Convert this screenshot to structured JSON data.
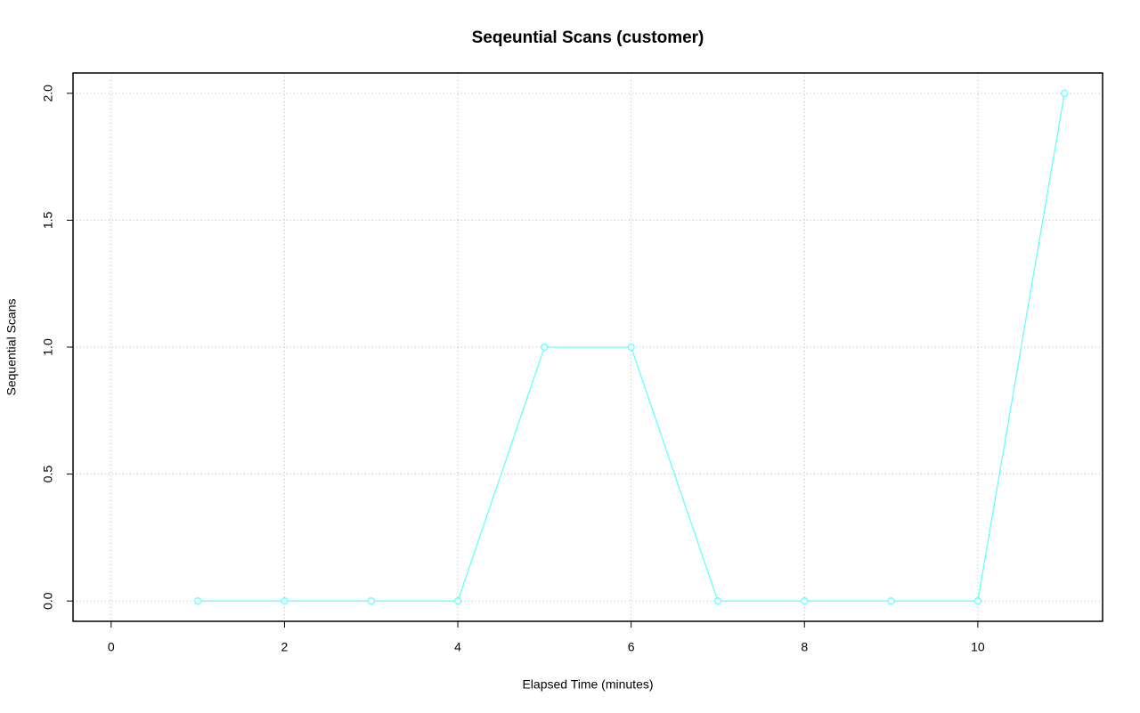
{
  "chart_data": {
    "type": "line",
    "title": "Seqeuntial Scans (customer)",
    "xlabel": "Elapsed Time (minutes)",
    "ylabel": "Sequential Scans",
    "x": [
      1,
      2,
      3,
      4,
      5,
      6,
      7,
      8,
      9,
      10,
      11
    ],
    "series": [
      {
        "name": "customer",
        "color": "#66ffff",
        "values": [
          0,
          0,
          0,
          0,
          1,
          1,
          0,
          0,
          0,
          0,
          2
        ]
      }
    ],
    "xlim": [
      -0.44,
      11.44
    ],
    "xticks": [
      0,
      2,
      4,
      6,
      8,
      10
    ],
    "ylim": [
      -0.08,
      2.08
    ],
    "yticks": [
      {
        "value": 0,
        "label": "0.0"
      },
      {
        "value": 0.5,
        "label": "0.5"
      },
      {
        "value": 1,
        "label": "1.0"
      },
      {
        "value": 1.5,
        "label": "1.5"
      },
      {
        "value": 2,
        "label": "2.0"
      }
    ],
    "grid": true
  }
}
